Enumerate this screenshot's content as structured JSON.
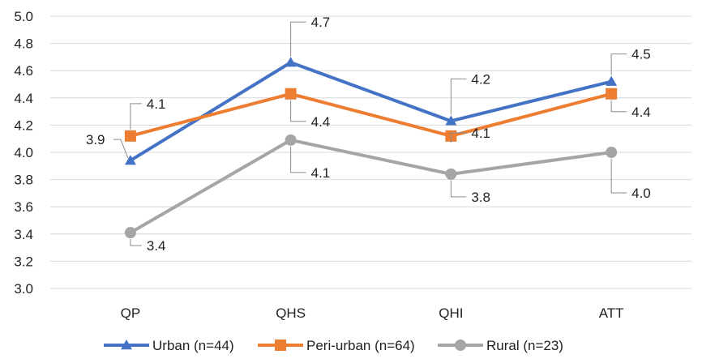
{
  "chart_data": {
    "type": "line",
    "categories": [
      "QP",
      "QHS",
      "QHI",
      "ATT"
    ],
    "ylim": [
      3.0,
      5.0
    ],
    "ytick_step": 0.2,
    "ytick_labels": [
      "3.0",
      "3.2",
      "3.4",
      "3.6",
      "3.8",
      "4.0",
      "4.2",
      "4.4",
      "4.6",
      "4.8",
      "5.0"
    ],
    "grid": true,
    "legend_position": "bottom",
    "series": [
      {
        "name": "Urban (n=44)",
        "values": [
          3.94,
          4.66,
          4.23,
          4.52
        ],
        "labels": [
          "3.9",
          "4.7",
          "4.2",
          "4.5"
        ],
        "color": "#4472C4",
        "marker": "triangle"
      },
      {
        "name": "Peri-urban (n=64)",
        "values": [
          4.12,
          4.43,
          4.12,
          4.43
        ],
        "labels": [
          "4.1",
          "4.4",
          "4.1",
          "4.4"
        ],
        "color": "#ED7D31",
        "marker": "square"
      },
      {
        "name": "Rural (n=23)",
        "values": [
          3.41,
          4.09,
          3.84,
          4.0
        ],
        "labels": [
          "3.4",
          "4.1",
          "3.8",
          "4.0"
        ],
        "color": "#A5A5A5",
        "marker": "circle"
      }
    ]
  }
}
